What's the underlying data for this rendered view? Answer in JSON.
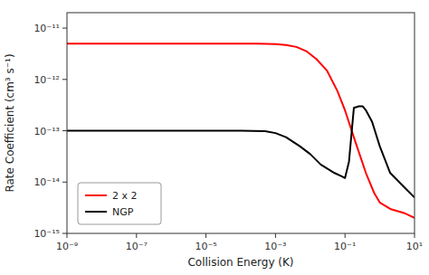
{
  "chart_data": {
    "type": "line",
    "title": "",
    "xlabel": "Collision Energy  (K)",
    "ylabel": "Rate Coefficient  (cm³ s⁻¹)",
    "log": true,
    "grid": false,
    "legend": "lower left",
    "xlim": [
      1e-09,
      10
    ],
    "ylim": [
      1e-15,
      2e-11
    ],
    "xticks": [
      {
        "value": 1e-09,
        "label": "10⁻⁹"
      },
      {
        "value": 1e-07,
        "label": "10⁻⁷"
      },
      {
        "value": 1e-05,
        "label": "10⁻⁵"
      },
      {
        "value": 0.001,
        "label": "10⁻³"
      },
      {
        "value": 0.1,
        "label": "10⁻¹"
      },
      {
        "value": 10,
        "label": "10¹"
      }
    ],
    "yticks": [
      {
        "value": 1e-15,
        "label": "10⁻¹⁵"
      },
      {
        "value": 1e-14,
        "label": "10⁻¹⁴"
      },
      {
        "value": 1e-13,
        "label": "10⁻¹³"
      },
      {
        "value": 1e-12,
        "label": "10⁻¹²"
      },
      {
        "value": 1e-11,
        "label": "10⁻¹¹"
      }
    ],
    "series": [
      {
        "name": "2 x 2",
        "color": "#ff0000",
        "x": [
          1e-09,
          1e-08,
          1e-07,
          1e-06,
          1e-05,
          3e-05,
          0.0001,
          0.0003,
          0.001,
          0.002,
          0.004,
          0.008,
          0.015,
          0.03,
          0.06,
          0.1,
          0.2,
          0.4,
          0.7,
          1.0,
          2.0,
          5.0,
          10.0
        ],
        "values": [
          5e-12,
          5e-12,
          5e-12,
          5e-12,
          5e-12,
          5e-12,
          5e-12,
          5e-12,
          4.9e-12,
          4.7e-12,
          4.3e-12,
          3.5e-12,
          2.5e-12,
          1.5e-12,
          6e-13,
          2.5e-13,
          6e-14,
          1.5e-14,
          6e-15,
          4e-15,
          3e-15,
          2.5e-15,
          2e-15
        ]
      },
      {
        "name": "NGP",
        "color": "#000000",
        "x": [
          1e-09,
          1e-08,
          1e-07,
          1e-06,
          1e-05,
          0.0001,
          0.0005,
          0.001,
          0.002,
          0.005,
          0.01,
          0.02,
          0.05,
          0.08,
          0.1,
          0.13,
          0.18,
          0.25,
          0.32,
          0.4,
          0.6,
          1.0,
          2.0,
          5.0,
          10.0
        ],
        "values": [
          1e-13,
          1e-13,
          1e-13,
          1e-13,
          1e-13,
          1e-13,
          9.8e-14,
          9e-14,
          7.5e-14,
          5e-14,
          3.5e-14,
          2.2e-14,
          1.5e-14,
          1.3e-14,
          1.2e-14,
          2.5e-14,
          2.8e-13,
          3e-13,
          3e-13,
          2.5e-13,
          1.5e-13,
          5e-14,
          1.5e-14,
          8e-15,
          5e-15
        ]
      }
    ]
  }
}
